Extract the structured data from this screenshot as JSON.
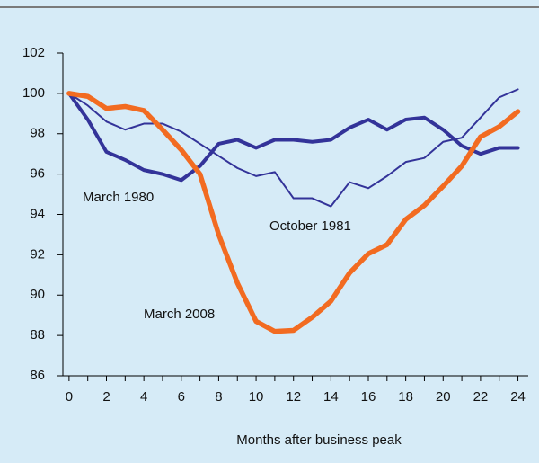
{
  "chart_data": {
    "type": "line",
    "x_label": "Months after business peak",
    "x": [
      0,
      1,
      2,
      3,
      4,
      5,
      6,
      7,
      8,
      9,
      10,
      11,
      12,
      13,
      14,
      15,
      16,
      17,
      18,
      19,
      20,
      21,
      22,
      23,
      24
    ],
    "xlim": [
      -0.33,
      24.55
    ],
    "xticks": [
      0,
      2,
      4,
      6,
      8,
      10,
      12,
      14,
      16,
      18,
      20,
      22,
      24
    ],
    "xminor_ticks": [
      1,
      3,
      5,
      7,
      9,
      11,
      13,
      15,
      17,
      19,
      21,
      23
    ],
    "ylim": [
      86,
      102
    ],
    "yticks": [
      86,
      88,
      90,
      92,
      94,
      96,
      98,
      100,
      102
    ],
    "series": [
      {
        "name": "October 1981",
        "color": "#333399",
        "width": 2,
        "values": [
          100,
          99.4,
          98.6,
          98.2,
          98.5,
          98.5,
          98.1,
          97.5,
          96.9,
          96.3,
          95.9,
          96.1,
          94.8,
          94.8,
          94.4,
          95.6,
          95.3,
          95.9,
          96.6,
          96.8,
          97.6,
          97.8,
          98.8,
          99.8,
          100.2
        ]
      },
      {
        "name": "March 1980",
        "color": "#333399",
        "width": 4,
        "values": [
          100,
          98.7,
          97.1,
          96.7,
          96.2,
          96.0,
          95.7,
          96.4,
          97.5,
          97.7,
          97.3,
          97.7,
          97.7,
          97.6,
          97.7,
          98.3,
          98.7,
          98.2,
          98.7,
          98.8,
          98.2,
          97.4,
          97.0,
          97.3,
          97.3
        ]
      },
      {
        "name": "March 2008",
        "color": "#f26b21",
        "width": 5.5,
        "values": [
          100,
          99.85,
          99.25,
          99.35,
          99.15,
          98.2,
          97.2,
          96.0,
          93.0,
          90.6,
          88.7,
          88.2,
          88.25,
          88.9,
          89.7,
          91.1,
          92.05,
          92.5,
          93.75,
          94.45,
          95.4,
          96.4,
          97.85,
          98.35,
          99.1
        ]
      }
    ]
  }
}
